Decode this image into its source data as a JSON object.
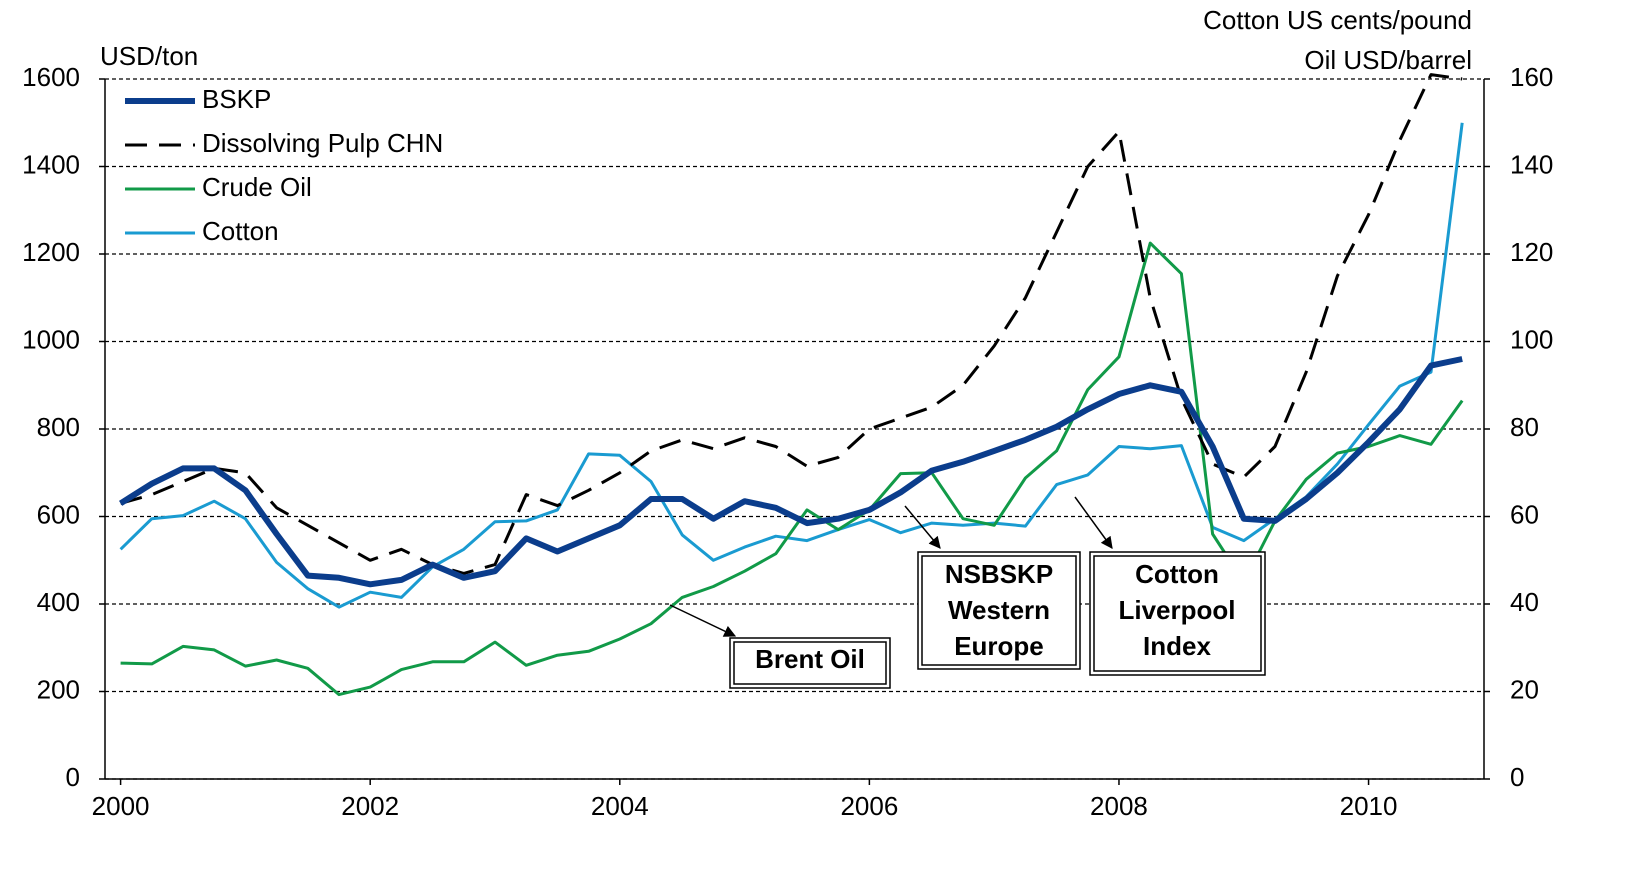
{
  "chart_data": {
    "type": "line",
    "ylabel": "USD/ton",
    "y2label": [
      "Cotton US cents/pound",
      "Oil USD/barrel"
    ],
    "x": [
      2000,
      2000.25,
      2000.5,
      2000.75,
      2001,
      2001.25,
      2001.5,
      2001.75,
      2002,
      2002.25,
      2002.5,
      2002.75,
      2003,
      2003.25,
      2003.5,
      2003.75,
      2004,
      2004.25,
      2004.5,
      2004.75,
      2005,
      2005.25,
      2005.5,
      2005.75,
      2006,
      2006.25,
      2006.5,
      2006.75,
      2007,
      2007.25,
      2007.5,
      2007.75,
      2008,
      2008.25,
      2008.5,
      2008.75,
      2009,
      2009.25,
      2009.5,
      2009.75,
      2010,
      2010.25,
      2010.5,
      2010.75
    ],
    "xlim": [
      1999.875,
      2010.925
    ],
    "xticks": [
      2000,
      2002,
      2004,
      2006,
      2008,
      2010
    ],
    "ylim": [
      0,
      1600
    ],
    "yticks": [
      0,
      200,
      400,
      600,
      800,
      1000,
      1200,
      1400,
      1600
    ],
    "y2lim": [
      0,
      160
    ],
    "y2ticks": [
      0,
      20,
      40,
      60,
      80,
      100,
      120,
      140,
      160
    ],
    "grid": true,
    "legend": "upper left",
    "series": [
      {
        "name": "BSKP",
        "color": "#0b3d8c",
        "width": 6,
        "dash": false,
        "values": [
          630,
          675,
          710,
          710,
          660,
          560,
          465,
          460,
          445,
          455,
          490,
          460,
          475,
          550,
          520,
          550,
          580,
          640,
          640,
          595,
          635,
          620,
          585,
          595,
          615,
          655,
          705,
          725,
          750,
          775,
          805,
          845,
          880,
          900,
          885,
          760,
          595,
          590,
          640,
          700,
          770,
          845,
          945,
          960
        ]
      },
      {
        "name": "Dissolving Pulp CHN",
        "color": "#000000",
        "width": 3,
        "dash": true,
        "values": [
          630,
          650,
          680,
          710,
          700,
          620,
          580,
          540,
          500,
          525,
          490,
          470,
          490,
          650,
          625,
          660,
          700,
          750,
          775,
          755,
          780,
          760,
          715,
          735,
          800,
          825,
          850,
          900,
          990,
          1100,
          1250,
          1400,
          1480,
          1100,
          870,
          720,
          690,
          760,
          930,
          1150,
          1290,
          1460,
          1610,
          1600
        ]
      },
      {
        "name": "Crude Oil",
        "color": "#119a48",
        "width": 3,
        "dash": false,
        "axis": "y2",
        "values": [
          26.5,
          26.3,
          30.3,
          29.5,
          25.8,
          27.2,
          25.3,
          19.3,
          21,
          25,
          26.8,
          26.8,
          31.3,
          26,
          28.3,
          29.2,
          32,
          35.5,
          41.5,
          44,
          47.5,
          51.5,
          61.5,
          57,
          61.5,
          69.8,
          70,
          59.5,
          58,
          68.8,
          75,
          89,
          96.5,
          122.5,
          115.5,
          56,
          45,
          59,
          68.5,
          74.5,
          76,
          78.5,
          76.5,
          86.5
        ]
      },
      {
        "name": "Cotton",
        "color": "#1a9bd1",
        "width": 3,
        "dash": false,
        "axis": "y2",
        "values": [
          52.5,
          59.5,
          60.2,
          63.5,
          59.5,
          49.5,
          43.5,
          39.3,
          42.7,
          41.5,
          48.5,
          52.5,
          58.8,
          59,
          61.5,
          74.3,
          74,
          68,
          55.8,
          50,
          53,
          55.5,
          54.5,
          57,
          59.3,
          56.3,
          58.5,
          58,
          58.5,
          57.8,
          67.3,
          69.5,
          76,
          75.5,
          76.2,
          57.5,
          54.5,
          59.5,
          64.5,
          72,
          81,
          89.8,
          93,
          150
        ]
      }
    ],
    "annotations": [
      {
        "lines": [
          "Brent Oil"
        ]
      },
      {
        "lines": [
          "NSBSKP",
          "Western",
          "Europe"
        ]
      },
      {
        "lines": [
          "Cotton",
          "Liverpool",
          "Index"
        ]
      }
    ]
  }
}
